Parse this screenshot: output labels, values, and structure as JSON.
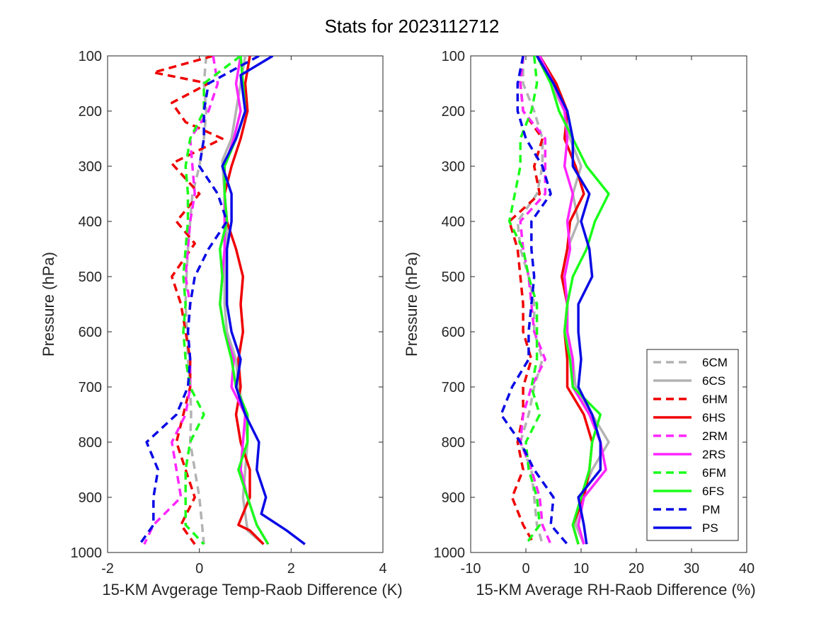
{
  "title": "Stats for 2023112712",
  "series_styles": [
    {
      "name": "6CM",
      "color": "#b3b3b3",
      "dash": true
    },
    {
      "name": "6CS",
      "color": "#b3b3b3",
      "dash": false
    },
    {
      "name": "6HM",
      "color": "#f00000",
      "dash": true
    },
    {
      "name": "6HS",
      "color": "#f00000",
      "dash": false
    },
    {
      "name": "2RM",
      "color": "#ff26ff",
      "dash": true
    },
    {
      "name": "2RS",
      "color": "#ff26ff",
      "dash": false
    },
    {
      "name": "6FM",
      "color": "#1aff1a",
      "dash": true
    },
    {
      "name": "6FS",
      "color": "#1aff1a",
      "dash": false
    },
    {
      "name": "PM",
      "color": "#0a0ae6",
      "dash": true
    },
    {
      "name": "PS",
      "color": "#0a0ae6",
      "dash": false
    }
  ],
  "chart_data": [
    {
      "type": "line",
      "xlabel": "15-KM Avgerage Temp-Raob Difference (K)",
      "ylabel": "Pressure (hPa)",
      "xlim": [
        -2,
        4
      ],
      "ylim": [
        100,
        1000
      ],
      "y_reversed": true,
      "xticks": [
        "-2",
        "0",
        "2",
        "4"
      ],
      "yticks": [
        "100",
        "200",
        "300",
        "400",
        "500",
        "600",
        "700",
        "800",
        "900",
        "1000"
      ],
      "series": [
        {
          "name": "6CM",
          "x": [
            0.15,
            0.1,
            0.15,
            0.1,
            0.0,
            -0.15,
            -0.2,
            -0.25,
            -0.28,
            -0.3,
            -0.27,
            -0.25,
            -0.2,
            -0.18,
            -0.2,
            0.0,
            0.1
          ],
          "y": [
            100,
            150,
            200,
            250,
            300,
            350,
            400,
            450,
            500,
            550,
            600,
            650,
            700,
            750,
            800,
            900,
            985
          ]
        },
        {
          "name": "6CS",
          "x": [
            1.0,
            0.9,
            0.8,
            0.7,
            0.5,
            0.55,
            0.6,
            0.6,
            0.55,
            0.55,
            0.6,
            0.8,
            0.85,
            1.0,
            1.05,
            1.0,
            0.95,
            1.05,
            1.4
          ],
          "y": [
            100,
            150,
            200,
            250,
            290,
            350,
            400,
            450,
            500,
            550,
            600,
            650,
            700,
            750,
            800,
            850,
            900,
            960,
            985
          ]
        },
        {
          "name": "6HM",
          "x": [
            0.3,
            -1.0,
            0.2,
            -0.6,
            -0.3,
            0.5,
            -0.6,
            0.0,
            -0.5,
            -0.1,
            -0.6,
            -0.4,
            -0.3,
            -0.2,
            -0.2,
            -0.5,
            -0.1,
            -0.4,
            -0.1
          ],
          "y": [
            100,
            130,
            150,
            185,
            220,
            250,
            295,
            350,
            400,
            440,
            500,
            550,
            600,
            650,
            700,
            800,
            900,
            950,
            985
          ]
        },
        {
          "name": "6HS",
          "x": [
            1.1,
            1.0,
            1.05,
            0.9,
            0.7,
            0.55,
            0.6,
            0.8,
            0.95,
            0.9,
            0.95,
            0.85,
            0.9,
            0.8,
            0.9,
            1.1,
            1.1,
            0.85,
            1.1,
            1.4
          ],
          "y": [
            100,
            150,
            200,
            250,
            300,
            350,
            400,
            450,
            500,
            550,
            600,
            650,
            700,
            750,
            800,
            850,
            900,
            950,
            960,
            985
          ]
        },
        {
          "name": "2RM",
          "x": [
            0.3,
            0.4,
            0.2,
            -0.2,
            -0.15,
            -0.1,
            -0.2,
            -0.25,
            -0.3,
            -0.2,
            -0.25,
            -0.2,
            -0.2,
            -0.3,
            -0.6,
            -0.5,
            -0.4,
            -1.0,
            -1.2
          ],
          "y": [
            100,
            150,
            200,
            250,
            300,
            350,
            400,
            450,
            500,
            550,
            600,
            650,
            700,
            750,
            800,
            850,
            900,
            950,
            985
          ]
        },
        {
          "name": "2RS",
          "x": [
            0.9,
            0.8,
            0.9,
            0.75,
            0.55,
            0.55,
            0.55,
            0.55,
            0.5,
            0.45,
            0.55,
            0.75,
            0.7,
            1.0,
            0.95,
            0.9,
            1.05,
            1.25,
            1.5
          ],
          "y": [
            100,
            150,
            200,
            250,
            300,
            350,
            400,
            450,
            500,
            550,
            600,
            650,
            700,
            750,
            800,
            850,
            900,
            950,
            985
          ]
        },
        {
          "name": "6FM",
          "x": [
            0.9,
            0.1,
            0.1,
            -0.2,
            -0.3,
            -0.25,
            -0.25,
            -0.3,
            -0.35,
            -0.3,
            -0.35,
            -0.3,
            -0.2,
            0.1,
            -0.2,
            -0.3,
            -0.3,
            -0.3,
            0.1
          ],
          "y": [
            100,
            150,
            200,
            250,
            300,
            350,
            400,
            450,
            500,
            550,
            600,
            650,
            700,
            750,
            800,
            850,
            900,
            950,
            985
          ]
        },
        {
          "name": "6FS",
          "x": [
            0.9,
            0.95,
            1.0,
            0.8,
            0.55,
            0.55,
            0.6,
            0.45,
            0.5,
            0.45,
            0.55,
            0.7,
            0.8,
            1.05,
            1.05,
            0.85,
            1.05,
            1.25,
            1.5
          ],
          "y": [
            100,
            150,
            200,
            250,
            300,
            350,
            400,
            450,
            500,
            550,
            600,
            650,
            700,
            750,
            800,
            850,
            900,
            950,
            985
          ]
        },
        {
          "name": "PM",
          "x": [
            1.3,
            0.2,
            0.1,
            0.1,
            0.0,
            0.4,
            0.6,
            0.2,
            -0.1,
            -0.2,
            -0.25,
            -0.2,
            -0.25,
            -0.5,
            -1.15,
            -0.9,
            -1.0,
            -1.0,
            -1.3
          ],
          "y": [
            100,
            150,
            200,
            250,
            300,
            350,
            400,
            450,
            500,
            550,
            600,
            650,
            700,
            750,
            800,
            850,
            900,
            950,
            985
          ]
        },
        {
          "name": "PS",
          "x": [
            1.6,
            0.9,
            1.0,
            0.8,
            0.5,
            0.7,
            0.7,
            0.6,
            0.6,
            0.6,
            0.7,
            0.9,
            0.8,
            1.0,
            1.3,
            1.25,
            1.45,
            1.35,
            1.9,
            2.3
          ],
          "y": [
            100,
            135,
            200,
            250,
            300,
            350,
            400,
            450,
            500,
            550,
            600,
            650,
            700,
            750,
            800,
            850,
            900,
            930,
            960,
            985
          ]
        }
      ]
    },
    {
      "type": "line",
      "xlabel": "15-KM Average RH-Raob Difference (%)",
      "ylabel": "Pressure (hPa)",
      "xlim": [
        -10,
        40
      ],
      "ylim": [
        100,
        1000
      ],
      "y_reversed": true,
      "xticks": [
        "-10",
        "0",
        "10",
        "20",
        "30",
        "40"
      ],
      "yticks": [
        "100",
        "200",
        "300",
        "400",
        "500",
        "600",
        "700",
        "800",
        "900",
        "1000"
      ],
      "legend": "lower-right",
      "series": [
        {
          "name": "6CM",
          "x": [
            -0.5,
            -0.5,
            1.5,
            3.0,
            3.0,
            2.0,
            -1.5,
            -1.0,
            0.5,
            1.5,
            1.5,
            3.0,
            1.5,
            0.5,
            -1.0,
            1.0,
            1.5,
            2.0,
            3.0
          ],
          "y": [
            100,
            150,
            200,
            250,
            300,
            350,
            400,
            450,
            500,
            550,
            600,
            650,
            700,
            750,
            800,
            850,
            900,
            950,
            985
          ]
        },
        {
          "name": "6CS",
          "x": [
            2.0,
            4.5,
            7.0,
            8.0,
            10.0,
            8.5,
            9.5,
            7.5,
            6.5,
            7.5,
            7.5,
            8.5,
            9.0,
            12.0,
            15.0,
            12.0,
            10.0,
            9.0,
            10.5
          ],
          "y": [
            100,
            150,
            200,
            250,
            300,
            350,
            400,
            450,
            500,
            550,
            600,
            650,
            700,
            750,
            800,
            850,
            900,
            950,
            985
          ]
        },
        {
          "name": "6HM",
          "x": [
            -0.5,
            -1.0,
            -0.5,
            3.0,
            1.5,
            2.5,
            -3.0,
            -1.5,
            -1.0,
            -0.5,
            -0.5,
            1.0,
            -0.5,
            -0.5,
            -1.5,
            -0.5,
            -2.5,
            -0.5,
            1.5
          ],
          "y": [
            100,
            150,
            200,
            250,
            300,
            350,
            400,
            450,
            500,
            550,
            600,
            650,
            700,
            750,
            800,
            850,
            900,
            950,
            985
          ]
        },
        {
          "name": "6HS",
          "x": [
            2.5,
            5.5,
            7.5,
            7.0,
            9.0,
            10.5,
            8.0,
            7.5,
            6.5,
            7.5,
            7.0,
            7.5,
            7.5,
            10.5,
            12.0,
            11.5,
            10.5,
            8.5,
            9.5
          ],
          "y": [
            100,
            150,
            200,
            250,
            300,
            350,
            400,
            450,
            500,
            550,
            600,
            650,
            700,
            750,
            800,
            850,
            900,
            950,
            985
          ]
        },
        {
          "name": "2RM",
          "x": [
            -0.5,
            -1.0,
            -0.5,
            3.5,
            3.5,
            3.5,
            -1.0,
            -0.5,
            0.5,
            1.0,
            1.5,
            3.5,
            1.0,
            -0.5,
            -1.0,
            1.0,
            2.5,
            3.0,
            4.5
          ],
          "y": [
            100,
            150,
            200,
            250,
            300,
            350,
            400,
            450,
            500,
            550,
            600,
            650,
            700,
            750,
            800,
            850,
            900,
            950,
            985
          ]
        },
        {
          "name": "2RS",
          "x": [
            2.5,
            5.0,
            7.0,
            7.5,
            7.0,
            8.5,
            7.5,
            8.0,
            7.0,
            7.5,
            7.5,
            8.5,
            8.5,
            11.5,
            13.5,
            14.5,
            10.5,
            9.5,
            10.5
          ],
          "y": [
            100,
            150,
            200,
            250,
            300,
            350,
            400,
            450,
            500,
            550,
            600,
            650,
            700,
            750,
            800,
            850,
            900,
            950,
            985
          ]
        },
        {
          "name": "6FM",
          "x": [
            1.5,
            2.0,
            1.0,
            -1.0,
            -1.0,
            -2.0,
            -3.0,
            -0.5,
            0.5,
            2.0,
            2.0,
            2.0,
            1.0,
            2.5,
            0.0,
            0.5,
            2.0,
            2.5,
            0.0
          ],
          "y": [
            100,
            150,
            200,
            250,
            300,
            350,
            400,
            450,
            500,
            550,
            600,
            650,
            700,
            750,
            800,
            850,
            900,
            950,
            985
          ]
        },
        {
          "name": "6FS",
          "x": [
            2.0,
            4.5,
            6.0,
            8.5,
            11.0,
            15.0,
            12.5,
            11.0,
            8.5,
            7.5,
            7.0,
            8.0,
            8.5,
            13.5,
            12.0,
            11.5,
            10.0,
            8.5,
            9.5
          ],
          "y": [
            100,
            150,
            200,
            250,
            300,
            350,
            400,
            450,
            500,
            550,
            600,
            650,
            700,
            750,
            800,
            850,
            900,
            950,
            985
          ]
        },
        {
          "name": "PM",
          "x": [
            -0.5,
            -1.5,
            -1.5,
            0.0,
            3.0,
            4.5,
            1.0,
            1.0,
            1.5,
            1.0,
            0.5,
            0.5,
            -2.5,
            -4.5,
            -1.0,
            1.5,
            5.0,
            4.5,
            7.5
          ],
          "y": [
            100,
            150,
            200,
            250,
            300,
            350,
            400,
            450,
            500,
            550,
            600,
            650,
            700,
            750,
            800,
            850,
            900,
            950,
            985
          ]
        },
        {
          "name": "PS",
          "x": [
            2.0,
            5.0,
            7.5,
            8.5,
            8.5,
            11.5,
            10.0,
            11.5,
            12.0,
            9.5,
            9.5,
            10.0,
            9.5,
            12.0,
            13.5,
            13.5,
            9.5,
            10.5,
            11.0
          ],
          "y": [
            100,
            150,
            200,
            250,
            300,
            350,
            400,
            450,
            500,
            550,
            600,
            650,
            700,
            750,
            800,
            850,
            900,
            950,
            985
          ]
        }
      ]
    }
  ]
}
